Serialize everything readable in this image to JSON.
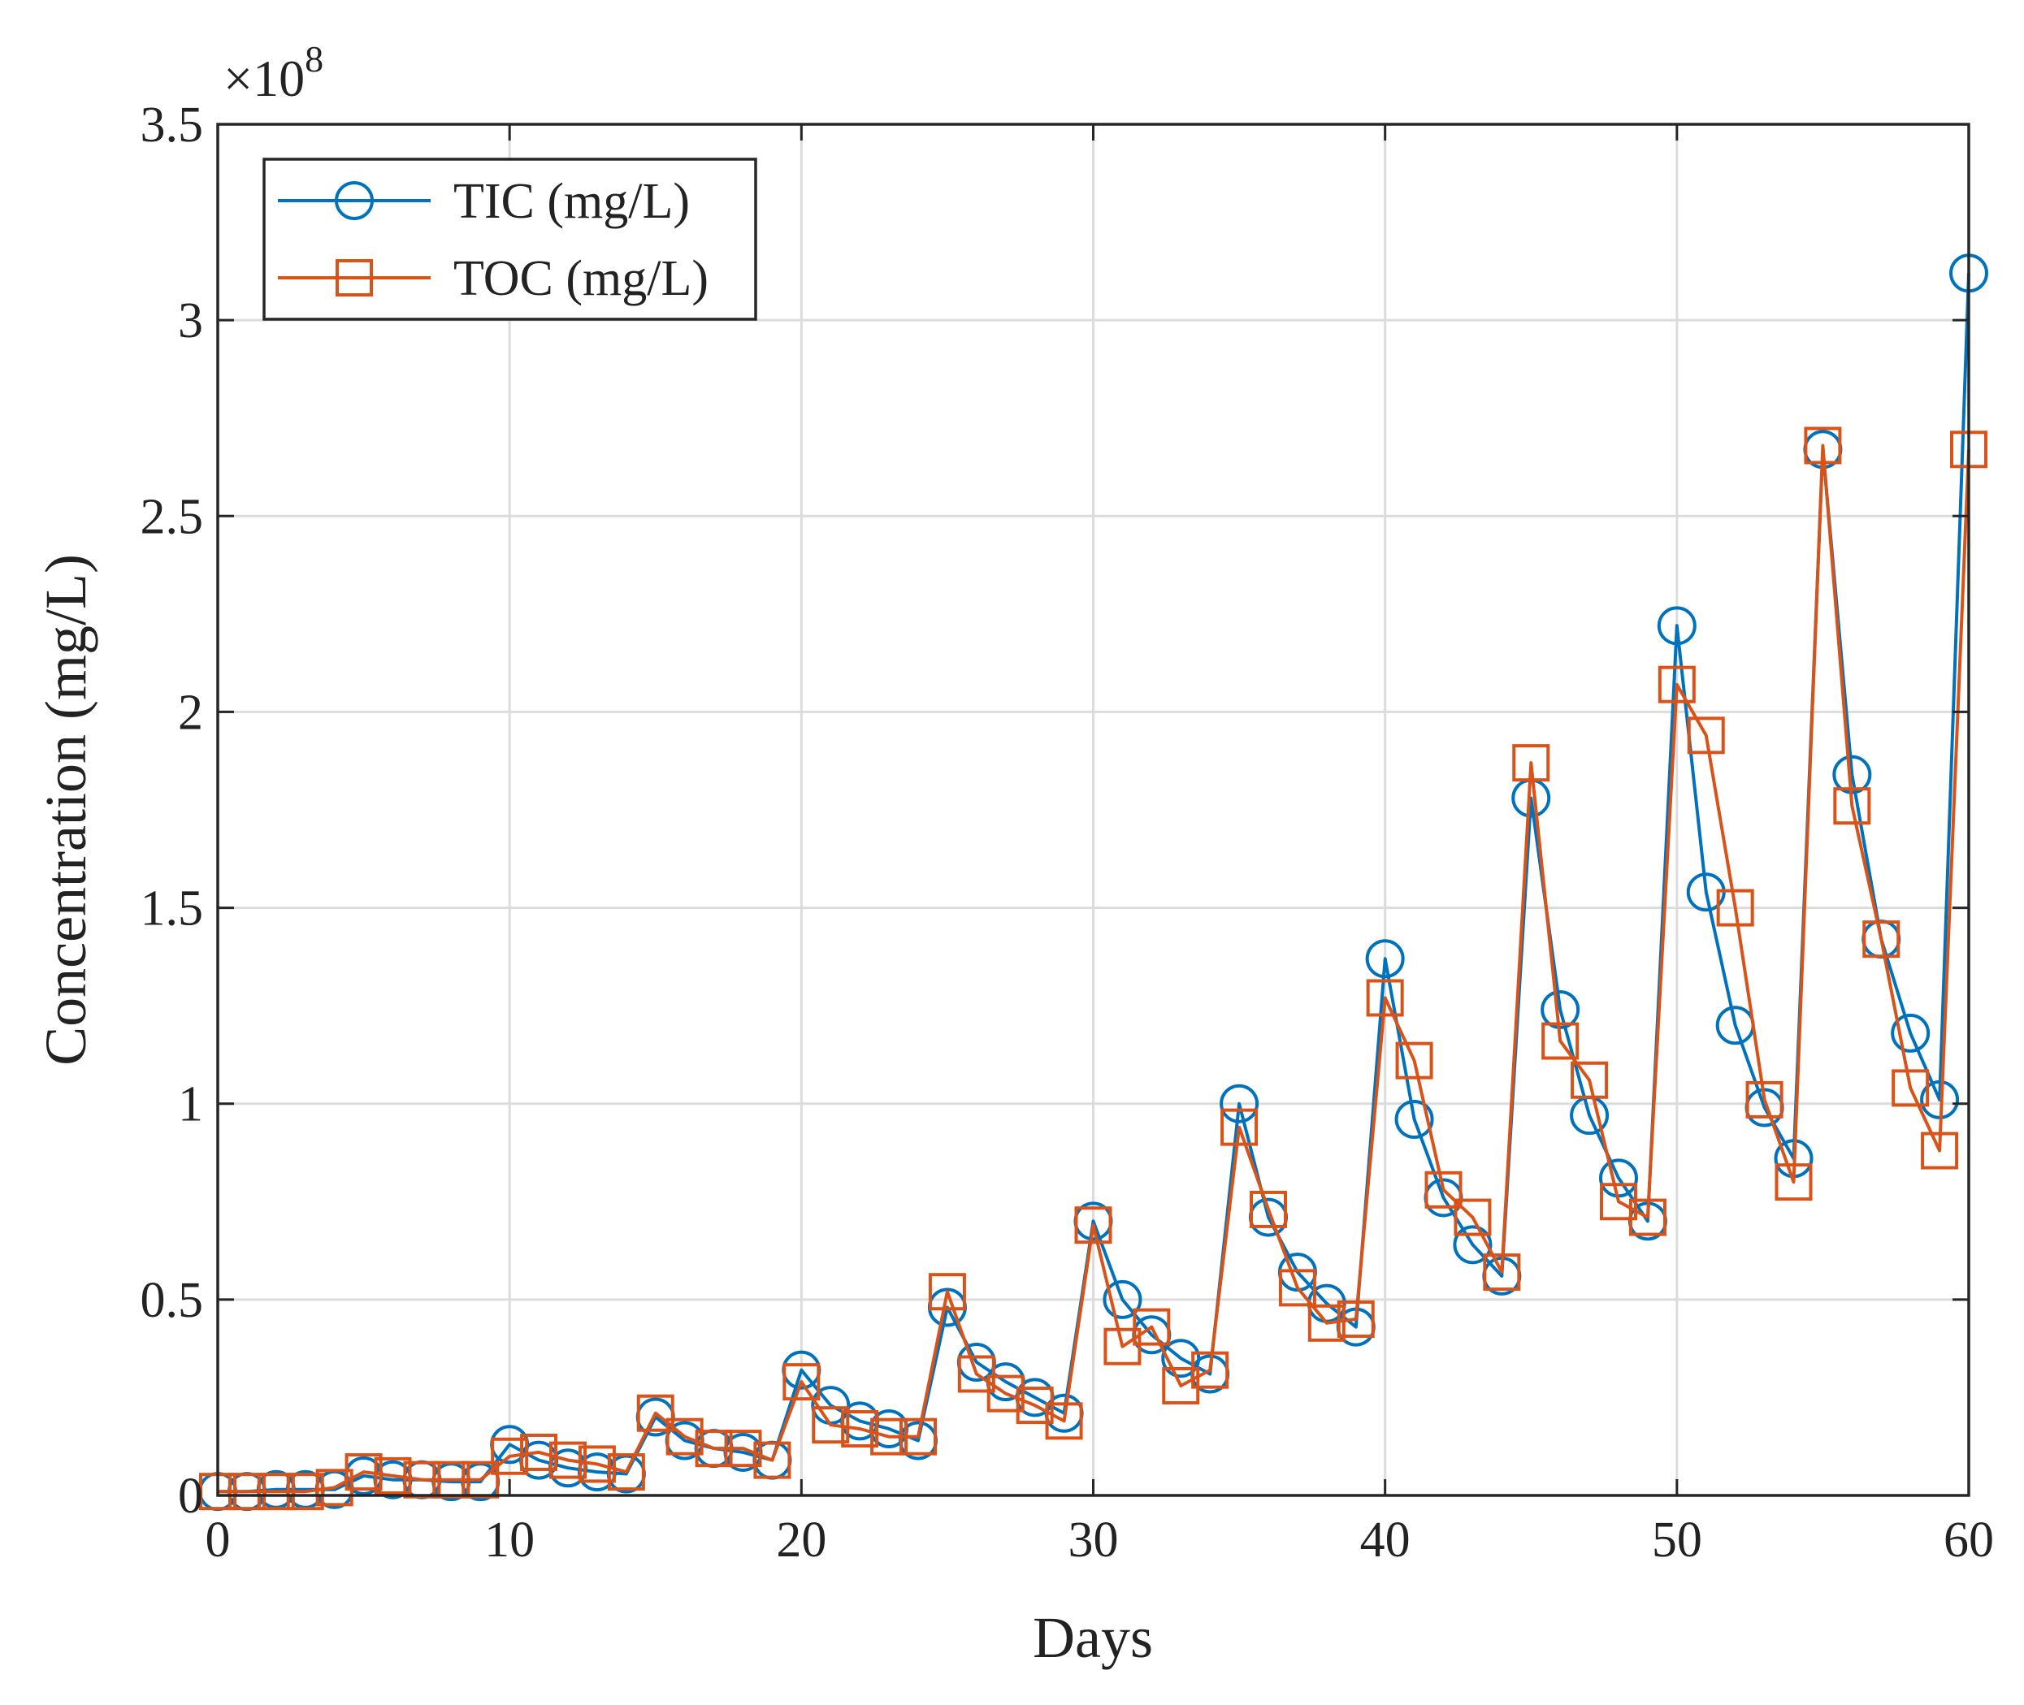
{
  "chart_data": {
    "type": "line",
    "title": "",
    "xlabel": "Days",
    "ylabel": "Concentration (mg/L)",
    "y_exponent_label": "×10",
    "y_exponent_power": "8",
    "y_multiplier": 100000000,
    "xlim": [
      0,
      60
    ],
    "ylim": [
      0,
      3.5
    ],
    "x_ticks": [
      0,
      10,
      20,
      30,
      40,
      50,
      60
    ],
    "x_tick_labels": [
      "0",
      "10",
      "20",
      "30",
      "40",
      "50",
      "60"
    ],
    "y_ticks": [
      0,
      0.5,
      1,
      1.5,
      2,
      2.5,
      3,
      3.5
    ],
    "y_tick_labels": [
      "0",
      "0.5",
      "1",
      "1.5",
      "2",
      "2.5",
      "3",
      "3.5"
    ],
    "grid": true,
    "legend_position": "top-left",
    "x": [
      0,
      1,
      2,
      3,
      4,
      5,
      6,
      7,
      8,
      9,
      10,
      11,
      12,
      13,
      14,
      15,
      16,
      17,
      18,
      19,
      20,
      21,
      22,
      23,
      24,
      25,
      26,
      27,
      28,
      29,
      30,
      31,
      32,
      33,
      34,
      35,
      36,
      37,
      38,
      39,
      40,
      41,
      42,
      43,
      44,
      45,
      46,
      47,
      48,
      49,
      50,
      51,
      52,
      53,
      54,
      55,
      56,
      57,
      58,
      59,
      60
    ],
    "series": [
      {
        "name": "TIC (mg/L)",
        "color": "#0072BD",
        "marker": "circle",
        "values": [
          0.01,
          0.01,
          0.015,
          0.015,
          0.015,
          0.05,
          0.04,
          0.04,
          0.035,
          0.035,
          0.13,
          0.09,
          0.07,
          0.06,
          0.055,
          0.2,
          0.14,
          0.12,
          0.11,
          0.09,
          0.32,
          0.23,
          0.19,
          0.17,
          0.14,
          0.48,
          0.34,
          0.29,
          0.25,
          0.21,
          0.7,
          0.5,
          0.41,
          0.35,
          0.31,
          1.0,
          0.71,
          0.57,
          0.49,
          0.43,
          1.37,
          0.96,
          0.76,
          0.64,
          0.56,
          1.78,
          1.24,
          0.97,
          0.81,
          0.7,
          2.22,
          1.54,
          1.2,
          0.99,
          0.86,
          2.67,
          1.84,
          1.42,
          1.18,
          1.01,
          3.12
        ]
      },
      {
        "name": "TOC (mg/L)",
        "color": "#D95319",
        "marker": "square",
        "values": [
          0.01,
          0.01,
          0.01,
          0.01,
          0.02,
          0.06,
          0.05,
          0.04,
          0.04,
          0.04,
          0.1,
          0.11,
          0.09,
          0.08,
          0.06,
          0.21,
          0.15,
          0.12,
          0.12,
          0.09,
          0.29,
          0.18,
          0.17,
          0.15,
          0.15,
          0.52,
          0.31,
          0.26,
          0.23,
          0.19,
          0.69,
          0.38,
          0.43,
          0.28,
          0.32,
          0.94,
          0.73,
          0.53,
          0.44,
          0.45,
          1.27,
          1.11,
          0.78,
          0.71,
          0.57,
          1.87,
          1.16,
          1.06,
          0.75,
          0.71,
          2.07,
          1.94,
          1.5,
          1.01,
          0.8,
          2.68,
          1.76,
          1.42,
          1.04,
          0.88,
          2.67
        ]
      }
    ]
  }
}
